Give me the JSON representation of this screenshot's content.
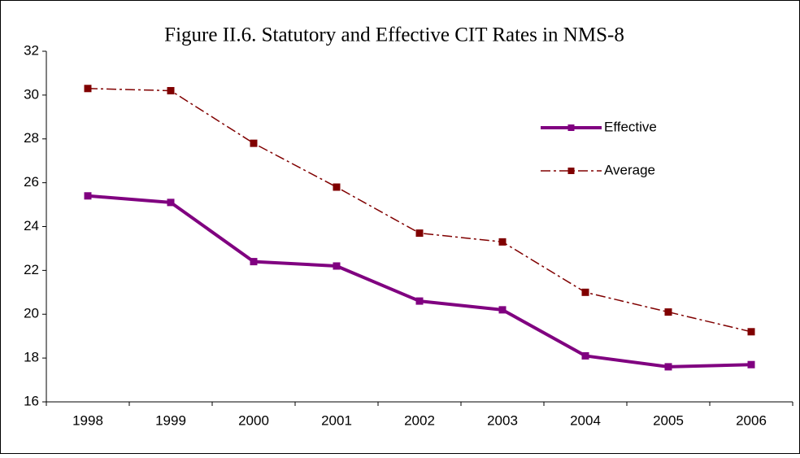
{
  "chart_data": {
    "type": "line",
    "title": "Figure II.6. Statutory and Effective CIT Rates in NMS-8",
    "categories": [
      "1998",
      "1999",
      "2000",
      "2001",
      "2002",
      "2003",
      "2004",
      "2005",
      "2006"
    ],
    "series": [
      {
        "name": "Effective",
        "color": "#800080",
        "line_style": "solid",
        "line_width": 4,
        "values": [
          25.4,
          25.1,
          22.4,
          22.2,
          20.6,
          20.2,
          18.1,
          17.6,
          17.7
        ]
      },
      {
        "name": "Average",
        "color": "#800000",
        "line_style": "dashdot",
        "line_width": 1.5,
        "values": [
          30.3,
          30.2,
          27.8,
          25.8,
          23.7,
          23.3,
          21.0,
          20.1,
          19.2
        ]
      }
    ],
    "ylim": [
      16,
      32
    ],
    "yticks": [
      16,
      18,
      20,
      22,
      24,
      26,
      28,
      30,
      32
    ],
    "grid": false,
    "legend": "upper right"
  }
}
